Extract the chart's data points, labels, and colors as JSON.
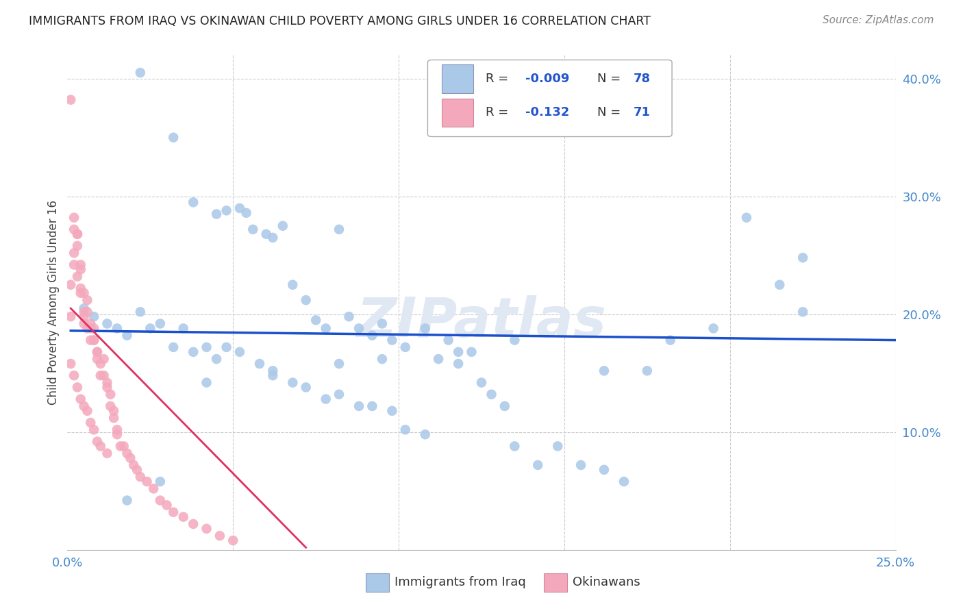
{
  "title": "IMMIGRANTS FROM IRAQ VS OKINAWAN CHILD POVERTY AMONG GIRLS UNDER 16 CORRELATION CHART",
  "source": "Source: ZipAtlas.com",
  "ylabel": "Child Poverty Among Girls Under 16",
  "xlim": [
    0.0,
    0.25
  ],
  "ylim": [
    0.0,
    0.42
  ],
  "scatter_color1": "#aac8e8",
  "scatter_color2": "#f4a8bc",
  "trendline_color1": "#1a50cc",
  "trendline_color2": "#e03060",
  "legend_color1": "#aac8e8",
  "legend_color2": "#f4a8bc",
  "watermark": "ZIPatlas",
  "blue_x": [
    0.022,
    0.032,
    0.038,
    0.045,
    0.048,
    0.052,
    0.054,
    0.056,
    0.06,
    0.062,
    0.065,
    0.068,
    0.072,
    0.075,
    0.078,
    0.082,
    0.085,
    0.088,
    0.092,
    0.095,
    0.098,
    0.102,
    0.108,
    0.112,
    0.115,
    0.118,
    0.122,
    0.125,
    0.128,
    0.132,
    0.005,
    0.008,
    0.012,
    0.015,
    0.018,
    0.022,
    0.025,
    0.028,
    0.032,
    0.035,
    0.038,
    0.042,
    0.045,
    0.048,
    0.052,
    0.058,
    0.062,
    0.068,
    0.072,
    0.078,
    0.082,
    0.088,
    0.092,
    0.098,
    0.102,
    0.108,
    0.135,
    0.142,
    0.148,
    0.155,
    0.162,
    0.168,
    0.175,
    0.182,
    0.195,
    0.205,
    0.215,
    0.222,
    0.162,
    0.135,
    0.118,
    0.095,
    0.082,
    0.062,
    0.042,
    0.028,
    0.018,
    0.222
  ],
  "blue_y": [
    0.405,
    0.35,
    0.295,
    0.285,
    0.288,
    0.29,
    0.286,
    0.272,
    0.268,
    0.265,
    0.275,
    0.225,
    0.212,
    0.195,
    0.188,
    0.272,
    0.198,
    0.188,
    0.182,
    0.192,
    0.178,
    0.172,
    0.188,
    0.162,
    0.178,
    0.158,
    0.168,
    0.142,
    0.132,
    0.122,
    0.205,
    0.198,
    0.192,
    0.188,
    0.182,
    0.202,
    0.188,
    0.192,
    0.172,
    0.188,
    0.168,
    0.172,
    0.162,
    0.172,
    0.168,
    0.158,
    0.152,
    0.142,
    0.138,
    0.128,
    0.132,
    0.122,
    0.122,
    0.118,
    0.102,
    0.098,
    0.088,
    0.072,
    0.088,
    0.072,
    0.068,
    0.058,
    0.152,
    0.178,
    0.188,
    0.282,
    0.225,
    0.202,
    0.152,
    0.178,
    0.168,
    0.162,
    0.158,
    0.148,
    0.142,
    0.058,
    0.042,
    0.248
  ],
  "pink_x": [
    0.001,
    0.001,
    0.001,
    0.002,
    0.002,
    0.002,
    0.002,
    0.003,
    0.003,
    0.003,
    0.003,
    0.004,
    0.004,
    0.004,
    0.004,
    0.005,
    0.005,
    0.005,
    0.005,
    0.006,
    0.006,
    0.006,
    0.007,
    0.007,
    0.007,
    0.008,
    0.008,
    0.008,
    0.009,
    0.009,
    0.009,
    0.01,
    0.01,
    0.011,
    0.011,
    0.012,
    0.012,
    0.013,
    0.013,
    0.014,
    0.014,
    0.015,
    0.015,
    0.016,
    0.017,
    0.018,
    0.019,
    0.02,
    0.021,
    0.022,
    0.024,
    0.026,
    0.028,
    0.03,
    0.032,
    0.035,
    0.038,
    0.042,
    0.046,
    0.05,
    0.001,
    0.002,
    0.003,
    0.004,
    0.005,
    0.006,
    0.007,
    0.008,
    0.009,
    0.01,
    0.012
  ],
  "pink_y": [
    0.382,
    0.225,
    0.198,
    0.282,
    0.242,
    0.272,
    0.252,
    0.268,
    0.232,
    0.268,
    0.258,
    0.238,
    0.242,
    0.222,
    0.218,
    0.218,
    0.202,
    0.198,
    0.192,
    0.188,
    0.212,
    0.202,
    0.188,
    0.192,
    0.178,
    0.188,
    0.178,
    0.178,
    0.168,
    0.168,
    0.162,
    0.158,
    0.148,
    0.162,
    0.148,
    0.142,
    0.138,
    0.132,
    0.122,
    0.118,
    0.112,
    0.102,
    0.098,
    0.088,
    0.088,
    0.082,
    0.078,
    0.072,
    0.068,
    0.062,
    0.058,
    0.052,
    0.042,
    0.038,
    0.032,
    0.028,
    0.022,
    0.018,
    0.012,
    0.008,
    0.158,
    0.148,
    0.138,
    0.128,
    0.122,
    0.118,
    0.108,
    0.102,
    0.092,
    0.088,
    0.082
  ],
  "blue_trend_x": [
    0.001,
    0.25
  ],
  "blue_trend_y": [
    0.186,
    0.178
  ],
  "pink_trend_x": [
    0.001,
    0.072
  ],
  "pink_trend_y": [
    0.205,
    0.002
  ]
}
